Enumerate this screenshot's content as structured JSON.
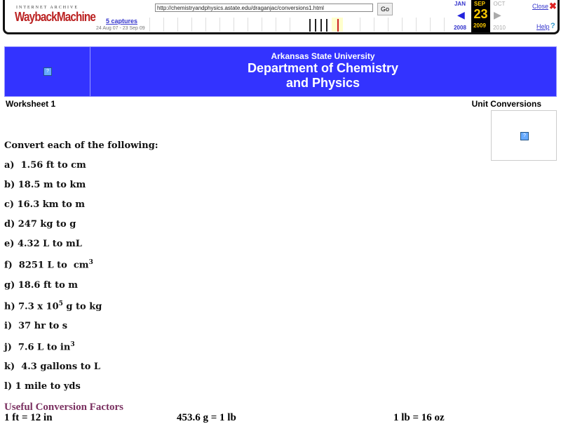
{
  "wayback": {
    "logo_top": "INTERNET ARCHIVE",
    "logo_main": "WaybackMachine",
    "captures": "5 captures",
    "range": "24 Aug 07 - 23 Sep 09",
    "url": "http://chemistryandphysics.astate.edu/draganjac/conversions1.html",
    "go": "Go",
    "prev_month": "JAN",
    "cur_month": "SEP",
    "next_month": "OCT",
    "day": "23",
    "prev_year": "2008",
    "cur_year": "2009",
    "next_year": "2010",
    "close": "Close",
    "help": "Help",
    "accent": "#3333ff"
  },
  "banner": {
    "university": "Arkansas State University",
    "dept_line1": "Department of Chemistry",
    "dept_line2": "and Physics",
    "color": "#3333ff"
  },
  "worksheet": "Worksheet 1",
  "topic": "Unit Conversions",
  "instructions": "Convert each of the following:",
  "items": [
    {
      "text": "a)  1.56 ft to cm"
    },
    {
      "text": "b) 18.5 m to km"
    },
    {
      "text": "c) 16.3 km to m"
    },
    {
      "text": "d) 247 kg to g"
    },
    {
      "text": "e) 4.32 L to mL"
    },
    {
      "text": "f)  8251 L to  cm",
      "sup": "3"
    },
    {
      "text": "g) 18.6 ft to m"
    },
    {
      "text": "h) 7.3 x 10",
      "sup": "5",
      "after": " g to kg"
    },
    {
      "text": "i)  37 hr to s"
    },
    {
      "text": "j)  7.6 L to in",
      "sup": "3"
    },
    {
      "text": "k)  4.3 gallons to L"
    },
    {
      "text": "l) 1 mile to yds"
    }
  ],
  "useful_title": "Useful Conversion Factors",
  "factors": [
    "1 ft = 12 in",
    "453.6 g = 1 lb",
    "1 lb = 16 oz"
  ]
}
